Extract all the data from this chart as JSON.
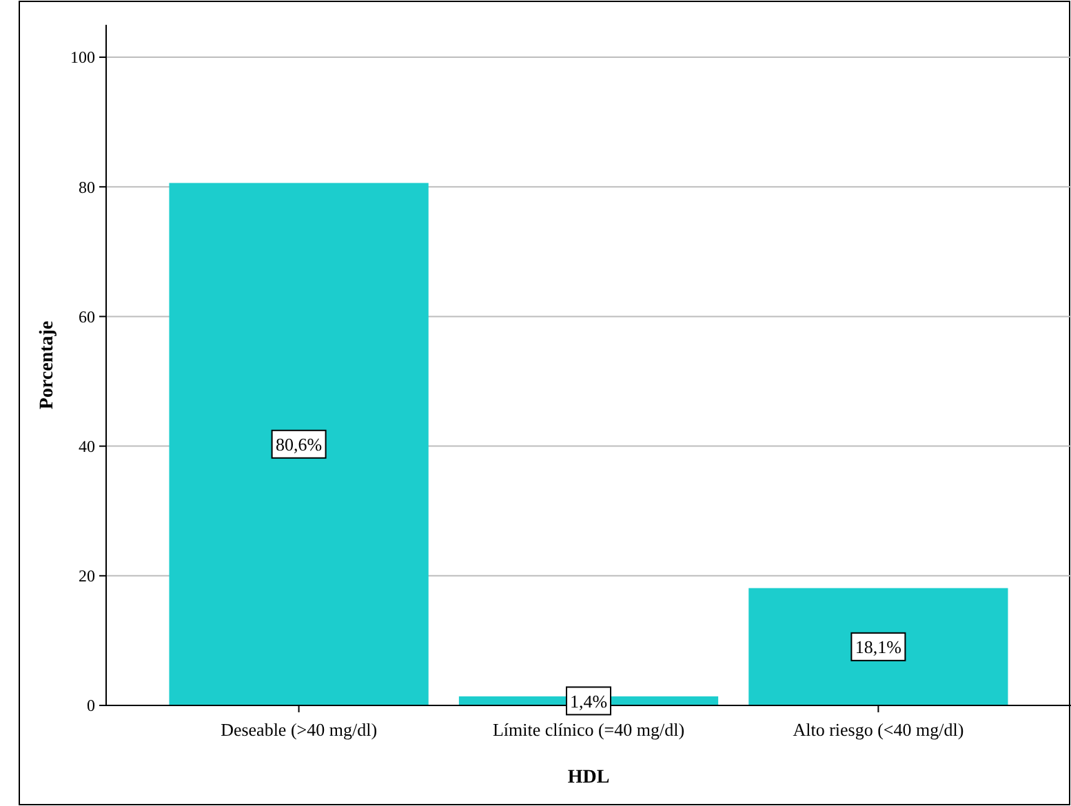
{
  "chart_data": {
    "type": "bar",
    "xlabel": "HDL",
    "ylabel": "Porcentaje",
    "categories": [
      "Deseable (>40 mg/dl)",
      "Límite clínico (=40 mg/dl)",
      "Alto riesgo (<40 mg/dl)"
    ],
    "values": [
      80.6,
      1.4,
      18.1
    ],
    "value_labels": [
      "80,6%",
      "1,4%",
      "18,1%"
    ],
    "color": "#1ccdcd",
    "ylim": [
      0,
      105
    ],
    "yticks": [
      0,
      20,
      40,
      60,
      80,
      100
    ],
    "grid": "y"
  }
}
